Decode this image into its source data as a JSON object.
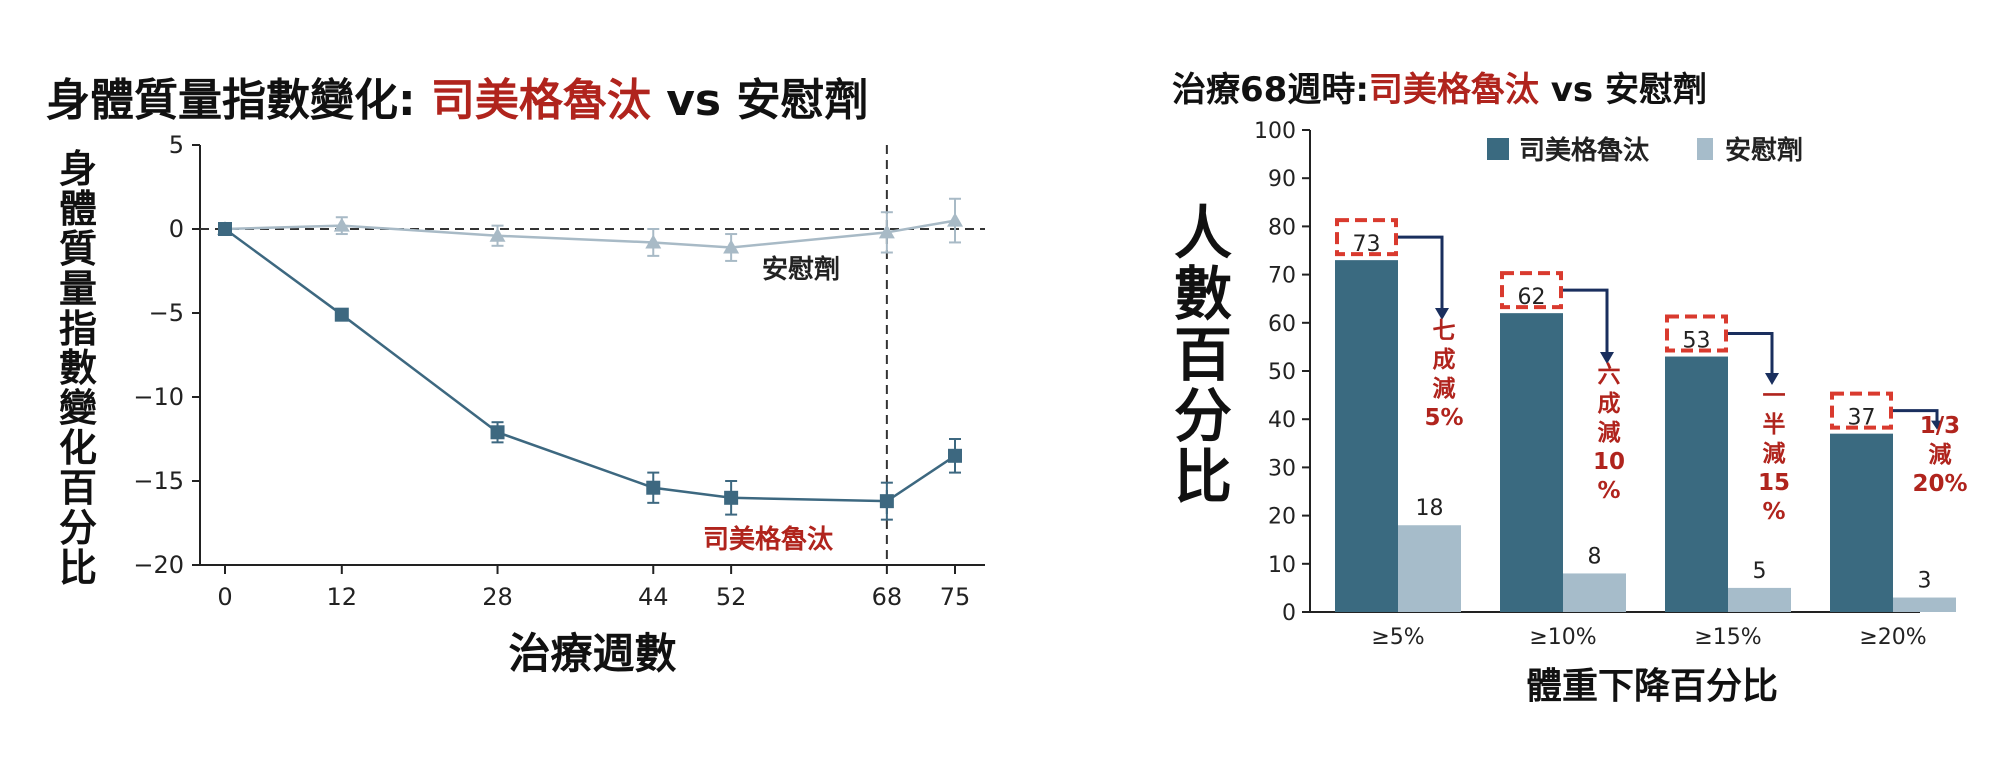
{
  "chart_data": [
    {
      "type": "line",
      "title_part1": "身體質量指數變化: ",
      "title_drug": "司美格魯汰",
      "title_vs": " vs ",
      "title_placebo": "安慰劑",
      "ylabel": "身體質量指數變化百分比",
      "xlabel": "治療週數",
      "x": [
        0,
        12,
        28,
        44,
        52,
        68,
        75
      ],
      "xticks": [
        "0",
        "12",
        "28",
        "44",
        "52",
        "68",
        "75"
      ],
      "yticks": [
        "5",
        "0",
        "−5",
        "−10",
        "−15",
        "−20"
      ],
      "ylim": [
        -20,
        5
      ],
      "series": [
        {
          "name": "安慰劑",
          "values": [
            0,
            0.2,
            -0.4,
            -0.8,
            -1.1,
            -0.2,
            0.5
          ],
          "err": [
            0.3,
            0.5,
            0.6,
            0.8,
            0.8,
            1.2,
            1.3
          ],
          "marker": "triangle",
          "color": "#a8bac6"
        },
        {
          "name": "司美格魯汰",
          "values": [
            0,
            -5.1,
            -12.1,
            -15.4,
            -16.0,
            -16.2,
            -13.5
          ],
          "err": [
            0.2,
            0.3,
            0.6,
            0.9,
            1.0,
            1.1,
            1.0
          ],
          "marker": "square",
          "color": "#3d6880"
        }
      ],
      "vline_x": 68
    },
    {
      "type": "bar",
      "title_part1": "治療68週時:",
      "title_drug": "司美格魯汰",
      "title_vs": " vs ",
      "title_placebo": "安慰劑",
      "ylabel": "人數百分比",
      "xlabel": "體重下降百分比",
      "categories": [
        "≥5%",
        "≥10%",
        "≥15%",
        "≥20%"
      ],
      "ylim": [
        0,
        100
      ],
      "yticks": [
        "0",
        "10",
        "20",
        "30",
        "40",
        "50",
        "60",
        "70",
        "80",
        "90",
        "100"
      ],
      "legend": [
        "司美格魯汰",
        "安慰劑"
      ],
      "series": [
        {
          "name": "司美格魯汰",
          "values": [
            73,
            62,
            53,
            37
          ],
          "color": "#3a6a80"
        },
        {
          "name": "安慰劑",
          "values": [
            18,
            8,
            5,
            3
          ],
          "color": "#a6bcca"
        }
      ],
      "annotations": [
        [
          "七",
          "成",
          "減",
          "5%"
        ],
        [
          "六",
          "成",
          "減",
          "10",
          "%"
        ],
        [
          "一",
          "半",
          "減",
          "15",
          "%"
        ],
        [
          "1/3",
          "減",
          "20%"
        ]
      ]
    }
  ],
  "colors": {
    "accent_red": "#b0241d",
    "annot_red": "#b0241d",
    "arrow_navy": "#1a2f5e",
    "box_red": "#d93a2e"
  }
}
